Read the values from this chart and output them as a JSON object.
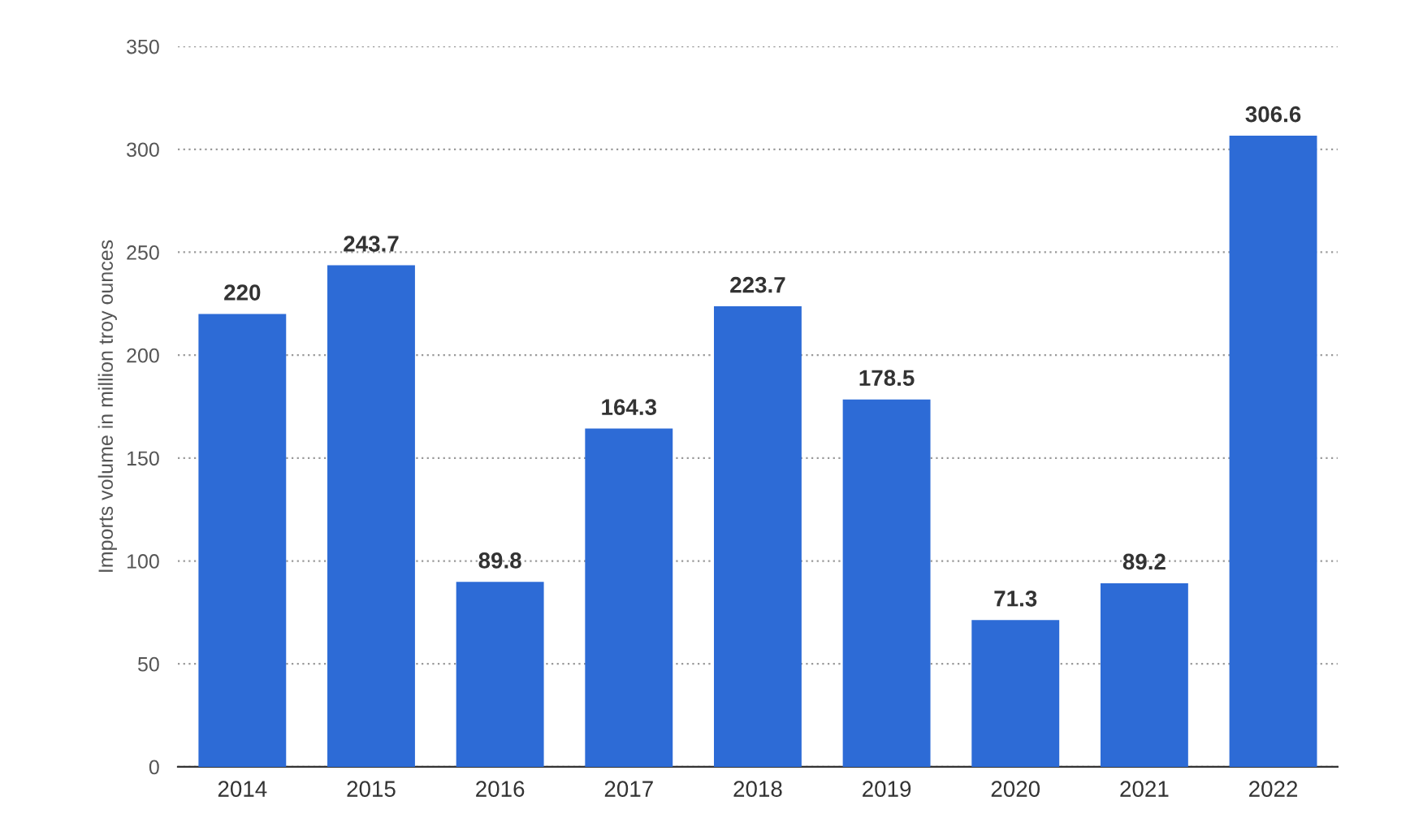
{
  "chart_data": {
    "type": "bar",
    "ylabel": "Imports volume in million troy ounces",
    "categories": [
      "2014",
      "2015",
      "2016",
      "2017",
      "2018",
      "2019",
      "2020",
      "2021",
      "2022"
    ],
    "values": [
      220,
      243.7,
      89.8,
      164.3,
      223.7,
      178.5,
      71.3,
      89.2,
      306.6
    ],
    "color": "#2d6bd6",
    "ylim": [
      0,
      350
    ],
    "yticks": [
      0,
      50,
      100,
      150,
      200,
      250,
      300,
      350
    ],
    "grid": "y",
    "data_labels": true
  }
}
